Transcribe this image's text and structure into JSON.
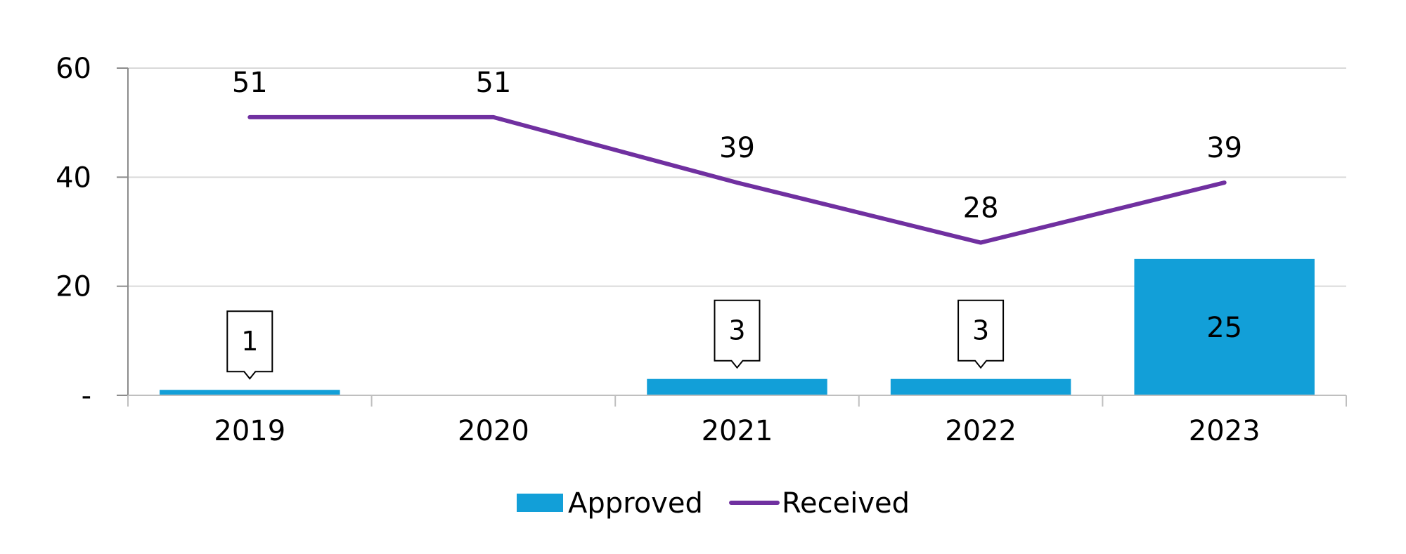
{
  "chart_data": {
    "type": "bar",
    "categories": [
      "2019",
      "2020",
      "2021",
      "2022",
      "2023"
    ],
    "series": [
      {
        "name": "Approved",
        "type": "bar",
        "color": "#129FD8",
        "values": [
          1,
          0,
          3,
          3,
          25
        ],
        "labels": [
          "1",
          "",
          "3",
          "3",
          "25"
        ]
      },
      {
        "name": "Received",
        "type": "line",
        "color": "#7030A0",
        "values": [
          51,
          51,
          39,
          28,
          39
        ],
        "labels": [
          "51",
          "51",
          "39",
          "28",
          "39"
        ]
      }
    ],
    "y_ticks": [
      {
        "value": 0,
        "label": "-"
      },
      {
        "value": 20,
        "label": "20"
      },
      {
        "value": 40,
        "label": "40"
      },
      {
        "value": 60,
        "label": "60"
      }
    ],
    "ylim": [
      0,
      60
    ],
    "grid": true,
    "legend_position": "bottom"
  }
}
